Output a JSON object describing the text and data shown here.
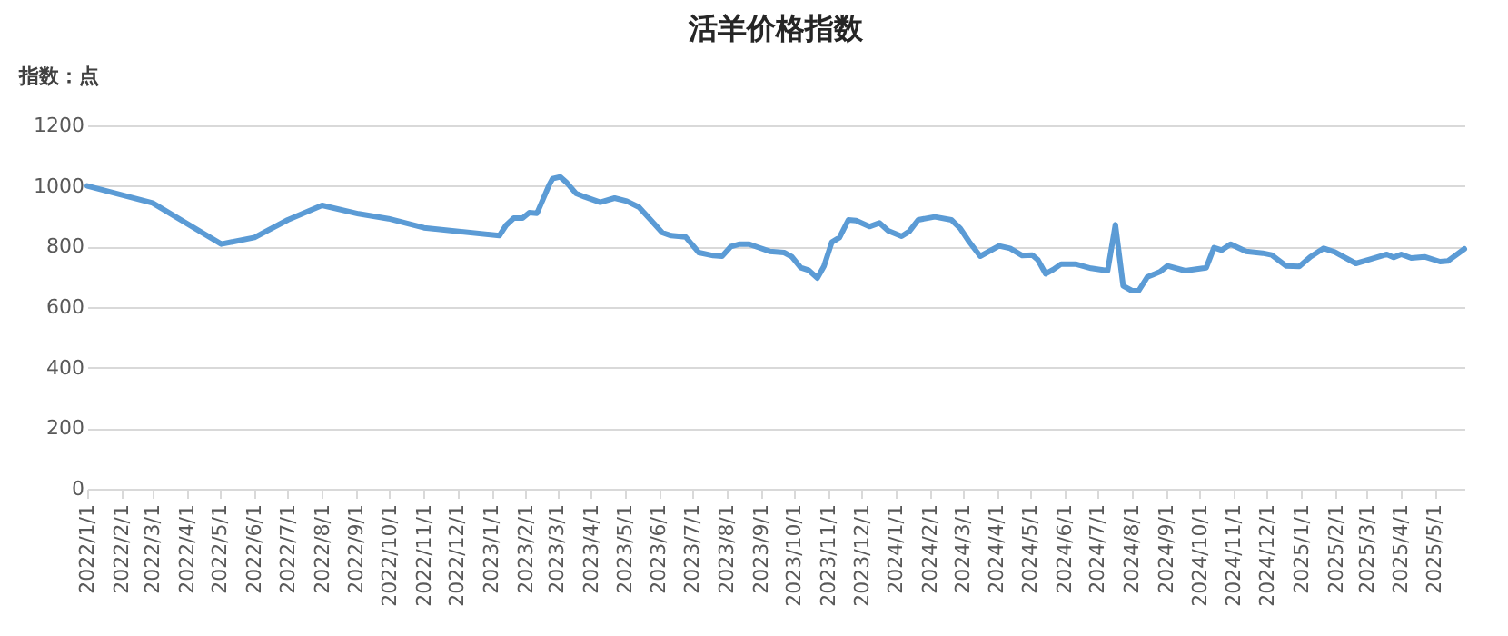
{
  "chart_data": {
    "type": "line",
    "title": "活羊价格指数",
    "ylabel": "指数：点",
    "x": [
      "2022-01-01",
      "2022-03-01",
      "2022-05-02",
      "2022-06-01",
      "2022-07-01",
      "2022-08-01",
      "2022-09-03",
      "2022-09-30",
      "2022-11-01",
      "2023-01-08",
      "2023-01-14",
      "2023-01-21",
      "2023-01-29",
      "2023-02-04",
      "2023-02-11",
      "2023-02-22",
      "2023-02-25",
      "2023-03-04",
      "2023-03-10",
      "2023-03-18",
      "2023-03-26",
      "2023-04-09",
      "2023-04-22",
      "2023-05-03",
      "2023-05-14",
      "2023-05-24",
      "2023-06-04",
      "2023-06-12",
      "2023-06-25",
      "2023-07-07",
      "2023-07-20",
      "2023-07-28",
      "2023-08-05",
      "2023-08-13",
      "2023-08-21",
      "2023-08-29",
      "2023-09-09",
      "2023-09-22",
      "2023-09-29",
      "2023-10-07",
      "2023-10-14",
      "2023-10-22",
      "2023-10-28",
      "2023-11-04",
      "2023-11-11",
      "2023-11-19",
      "2023-11-26",
      "2023-12-08",
      "2023-12-17",
      "2023-12-25",
      "2024-01-06",
      "2024-01-13",
      "2024-01-21",
      "2024-02-05",
      "2024-02-20",
      "2024-02-28",
      "2024-03-07",
      "2024-03-17",
      "2024-04-03",
      "2024-04-13",
      "2024-04-24",
      "2024-05-03",
      "2024-05-08",
      "2024-05-15",
      "2024-05-22",
      "2024-05-29",
      "2024-06-11",
      "2024-06-25",
      "2024-07-10",
      "2024-07-17",
      "2024-07-24",
      "2024-08-01",
      "2024-08-07",
      "2024-08-15",
      "2024-08-26",
      "2024-09-02",
      "2024-09-18",
      "2024-10-07",
      "2024-10-14",
      "2024-10-21",
      "2024-10-29",
      "2024-11-12",
      "2024-11-27",
      "2024-12-05",
      "2024-12-18",
      "2024-12-30",
      "2025-01-09",
      "2025-01-21",
      "2025-01-31",
      "2025-02-19",
      "2025-03-04",
      "2025-03-19",
      "2025-03-25",
      "2025-04-01",
      "2025-04-10",
      "2025-04-22",
      "2025-05-06",
      "2025-05-13",
      "2025-05-28"
    ],
    "series": [
      {
        "color": "#5b9bd5",
        "values": [
          1000,
          944,
          808,
          830,
          888,
          936,
          908,
          892,
          862,
          836,
          870,
          894,
          894,
          912,
          910,
          1004,
          1024,
          1030,
          1010,
          976,
          964,
          946,
          960,
          950,
          930,
          890,
          846,
          836,
          832,
          780,
          770,
          768,
          800,
          808,
          808,
          798,
          784,
          780,
          766,
          730,
          722,
          696,
          735,
          814,
          830,
          888,
          886,
          866,
          878,
          852,
          834,
          850,
          888,
          898,
          888,
          860,
          816,
          768,
          802,
          794,
          770,
          772,
          756,
          710,
          724,
          742,
          742,
          728,
          720,
          872,
          670,
          654,
          654,
          700,
          716,
          736,
          720,
          730,
          796,
          788,
          808,
          784,
          778,
          772,
          736,
          734,
          766,
          794,
          782,
          744,
          758,
          774,
          764,
          774,
          762,
          766,
          750,
          752,
          792
        ]
      }
    ],
    "xlim": [
      "2022-01-01",
      "2025-05-28"
    ],
    "xticks": [
      {
        "value": "2022-01-01",
        "label": "2022/1/1"
      },
      {
        "value": "2022-02-01",
        "label": "2022/2/1"
      },
      {
        "value": "2022-03-01",
        "label": "2022/3/1"
      },
      {
        "value": "2022-04-01",
        "label": "2022/4/1"
      },
      {
        "value": "2022-05-01",
        "label": "2022/5/1"
      },
      {
        "value": "2022-06-01",
        "label": "2022/6/1"
      },
      {
        "value": "2022-07-01",
        "label": "2022/7/1"
      },
      {
        "value": "2022-08-01",
        "label": "2022/8/1"
      },
      {
        "value": "2022-09-01",
        "label": "2022/9/1"
      },
      {
        "value": "2022-10-01",
        "label": "2022/10/1"
      },
      {
        "value": "2022-11-01",
        "label": "2022/11/1"
      },
      {
        "value": "2022-12-01",
        "label": "2022/12/1"
      },
      {
        "value": "2023-01-01",
        "label": "2023/1/1"
      },
      {
        "value": "2023-02-01",
        "label": "2023/2/1"
      },
      {
        "value": "2023-03-01",
        "label": "2023/3/1"
      },
      {
        "value": "2023-04-01",
        "label": "2023/4/1"
      },
      {
        "value": "2023-05-01",
        "label": "2023/5/1"
      },
      {
        "value": "2023-06-01",
        "label": "2023/6/1"
      },
      {
        "value": "2023-07-01",
        "label": "2023/7/1"
      },
      {
        "value": "2023-08-01",
        "label": "2023/8/1"
      },
      {
        "value": "2023-09-01",
        "label": "2023/9/1"
      },
      {
        "value": "2023-10-01",
        "label": "2023/10/1"
      },
      {
        "value": "2023-11-01",
        "label": "2023/11/1"
      },
      {
        "value": "2023-12-01",
        "label": "2023/12/1"
      },
      {
        "value": "2024-01-01",
        "label": "2024/1/1"
      },
      {
        "value": "2024-02-01",
        "label": "2024/2/1"
      },
      {
        "value": "2024-03-01",
        "label": "2024/3/1"
      },
      {
        "value": "2024-04-01",
        "label": "2024/4/1"
      },
      {
        "value": "2024-05-01",
        "label": "2024/5/1"
      },
      {
        "value": "2024-06-01",
        "label": "2024/6/1"
      },
      {
        "value": "2024-07-01",
        "label": "2024/7/1"
      },
      {
        "value": "2024-08-01",
        "label": "2024/8/1"
      },
      {
        "value": "2024-09-01",
        "label": "2024/9/1"
      },
      {
        "value": "2024-10-01",
        "label": "2024/10/1"
      },
      {
        "value": "2024-11-01",
        "label": "2024/11/1"
      },
      {
        "value": "2024-12-01",
        "label": "2024/12/1"
      },
      {
        "value": "2025-01-01",
        "label": "2025/1/1"
      },
      {
        "value": "2025-02-01",
        "label": "2025/2/1"
      },
      {
        "value": "2025-03-01",
        "label": "2025/3/1"
      },
      {
        "value": "2025-04-01",
        "label": "2025/4/1"
      },
      {
        "value": "2025-05-01",
        "label": "2025/5/1"
      }
    ],
    "ylim": [
      0,
      1200
    ],
    "yticks": [
      0,
      200,
      400,
      600,
      800,
      1000,
      1200
    ],
    "grid": "y",
    "marker": "none",
    "line_style": "solid"
  }
}
